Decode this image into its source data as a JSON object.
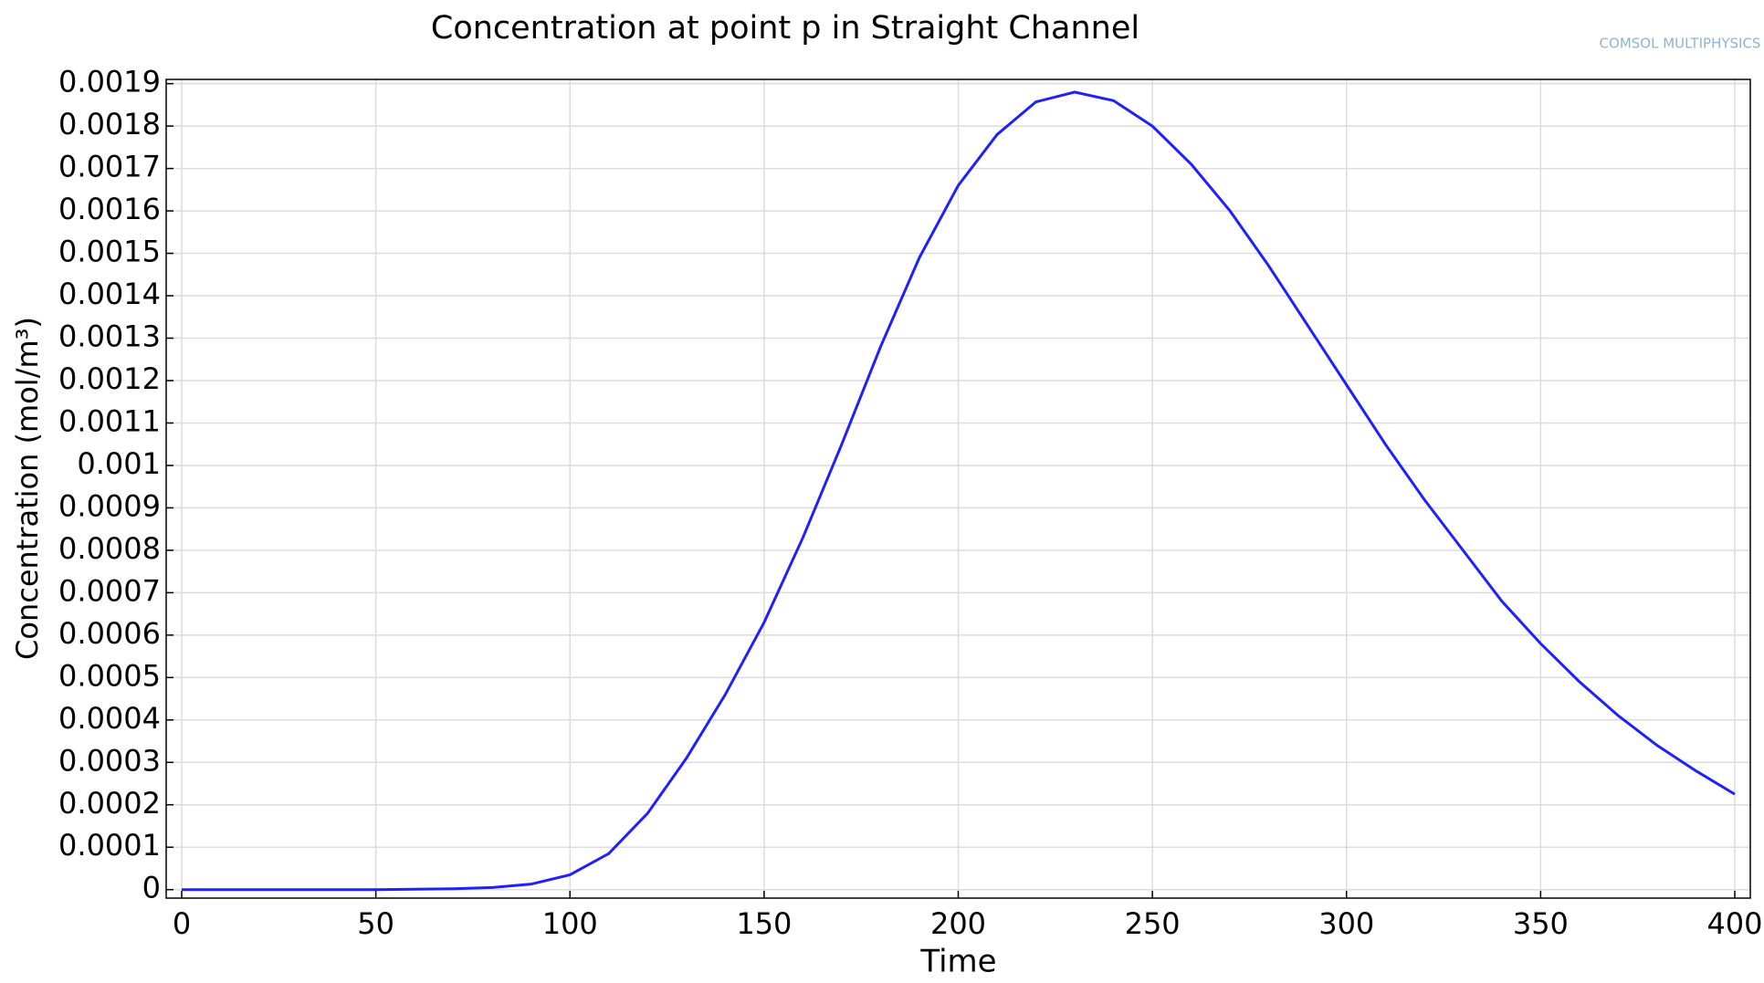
{
  "chart_data": {
    "type": "line",
    "title": "Concentration at point p in Straight Channel",
    "xlabel": "Time",
    "ylabel": "Concentration (mol/m³)",
    "watermark": "COMSOL MULTIPHYSICS",
    "x": [
      0,
      10,
      20,
      30,
      40,
      50,
      60,
      70,
      80,
      90,
      100,
      110,
      120,
      130,
      140,
      150,
      160,
      170,
      180,
      190,
      200,
      210,
      220,
      230,
      240,
      250,
      260,
      270,
      280,
      290,
      300,
      310,
      320,
      330,
      340,
      350,
      360,
      370,
      380,
      390,
      400
    ],
    "series": [
      {
        "name": "Concentration",
        "color": "#1f1fff",
        "values": [
          0,
          0,
          0,
          0,
          0,
          0,
          1e-06,
          2e-06,
          5e-06,
          1.3e-05,
          3.5e-05,
          8.5e-05,
          0.00018,
          0.00031,
          0.00046,
          0.00063,
          0.00083,
          0.00105,
          0.00128,
          0.00149,
          0.00166,
          0.00178,
          0.001857,
          0.00188,
          0.00186,
          0.0018,
          0.00171,
          0.0016,
          0.00147,
          0.00133,
          0.00119,
          0.00105,
          0.00092,
          0.0008,
          0.00068,
          0.00058,
          0.00049,
          0.00041,
          0.00034,
          0.00028,
          0.000225
        ]
      }
    ],
    "xlim": [
      -4,
      404
    ],
    "xticks": [
      0,
      50,
      100,
      150,
      200,
      250,
      300,
      350,
      400
    ],
    "ylim": [
      -2e-05,
      0.00191
    ],
    "yticks": [
      0,
      0.0001,
      0.0002,
      0.0003,
      0.0004,
      0.0005,
      0.0006,
      0.0007,
      0.0008,
      0.0009,
      0.001,
      0.0011,
      0.0012,
      0.0013,
      0.0014,
      0.0015,
      0.0016,
      0.0017,
      0.0018,
      0.0019
    ],
    "grid": true
  }
}
